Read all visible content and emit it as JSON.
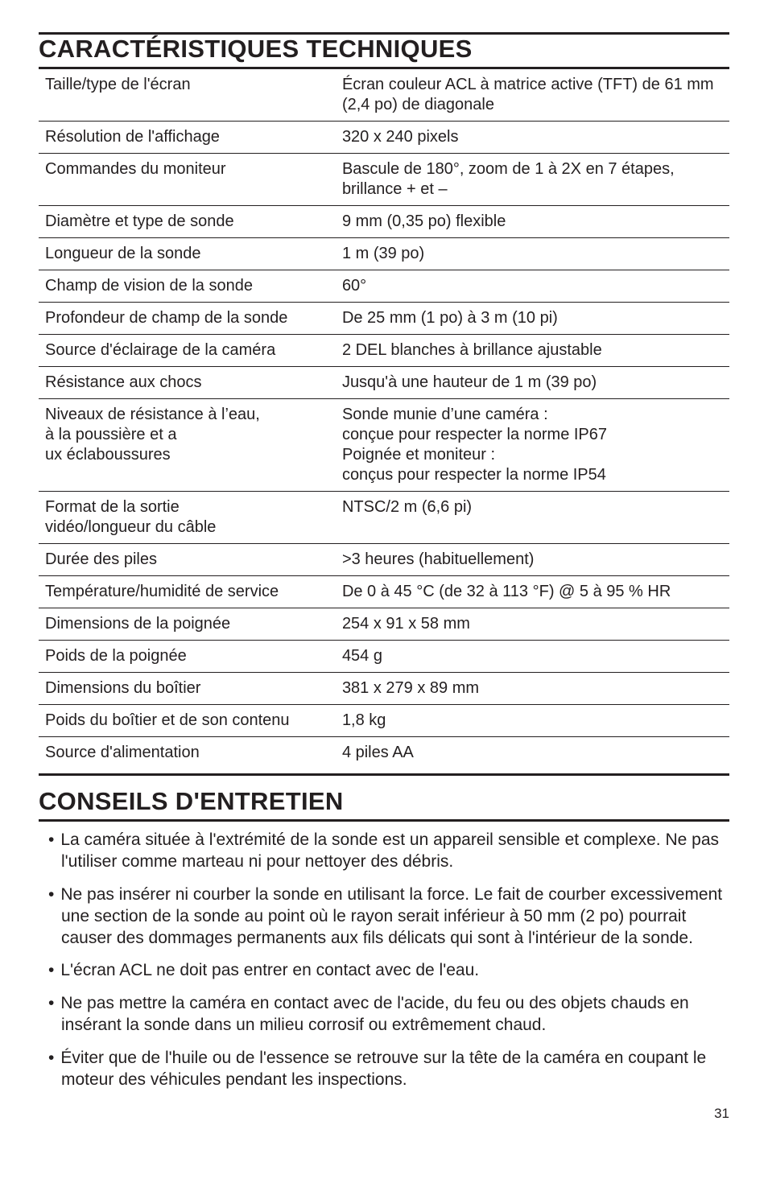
{
  "spec_heading": "CARACTÉRISTIQUES TECHNIQUES",
  "spec_rows": [
    {
      "label": "Taille/type de l'écran",
      "value": "Écran couleur ACL à matrice active (TFT) de 61 mm (2,4 po) de diagonale"
    },
    {
      "label": "Résolution de l'affichage",
      "value": "320 x 240 pixels"
    },
    {
      "label": "Commandes du moniteur",
      "value": "Bascule de 180°, zoom de 1 à 2X en 7 étapes, brillance + et –"
    },
    {
      "label": "Diamètre et type de sonde",
      "value": "9 mm (0,35 po) flexible"
    },
    {
      "label": "Longueur de la sonde",
      "value": "1 m (39 po)"
    },
    {
      "label": "Champ de vision de la sonde",
      "value": "60°"
    },
    {
      "label": "Profondeur de champ de la sonde",
      "value": "De 25 mm (1 po) à 3 m (10 pi)"
    },
    {
      "label": "Source d'éclairage de la caméra",
      "value": " 2 DEL blanches à brillance ajustable"
    },
    {
      "label": "Résistance aux chocs",
      "value": "Jusqu'à une hauteur de 1 m (39 po)"
    },
    {
      "label": "Niveaux de résistance à l'eau, à la poussière et a ux éclaboussures",
      "value": "Sonde munie d'une caméra : conçue pour respecter la norme IP67 Poignée et moniteur : conçus pour respecter la norme IP54"
    },
    {
      "label": "Format de la sortie vidéo/longueur du câble",
      "value": "NTSC/2 m (6,6 pi)"
    },
    {
      "label": "Durée des piles",
      "value": ">3 heures (habituellement)"
    },
    {
      "label": "Température/humidité de service",
      "value": " De 0 à 45 °C (de 32 à 113 °F) @ 5 à 95 % HR"
    },
    {
      "label": "Dimensions de la poignée",
      "value": "254 x 91 x 58 mm"
    },
    {
      "label": "Poids de la poignée",
      "value": "454 g"
    },
    {
      "label": "Dimensions du boîtier",
      "value": "381 x 279 x 89 mm"
    },
    {
      "label": "Poids du boîtier et de son contenu",
      "value": "1,8 kg"
    },
    {
      "label": "Source d'alimentation",
      "value": "4 piles AA"
    }
  ],
  "care_heading": "CONSEILS D'ENTRETIEN",
  "bullets": [
    "La caméra située à l'extrémité de la sonde est un appareil sensible et complexe. Ne pas l'utiliser comme marteau ni pour nettoyer des débris.",
    "Ne pas insérer ni courber la sonde en utilisant la force. Le fait de courber excessivement une section de la sonde au point où le rayon serait inférieur à 50 mm (2 po) pourrait causer des dommages permanents aux fils délicats qui sont à l'intérieur de la sonde.",
    "L'écran ACL ne doit pas entrer en contact avec de l'eau.",
    "Ne pas mettre la caméra en contact avec de l'acide, du feu ou des objets chauds en insérant la sonde dans un milieu corrosif ou extrêmement chaud.",
    "Éviter que de l'huile ou de l'essence se retrouve sur la tête de la caméra en coupant le moteur des véhicules pendant les inspections."
  ],
  "page_number": "31"
}
